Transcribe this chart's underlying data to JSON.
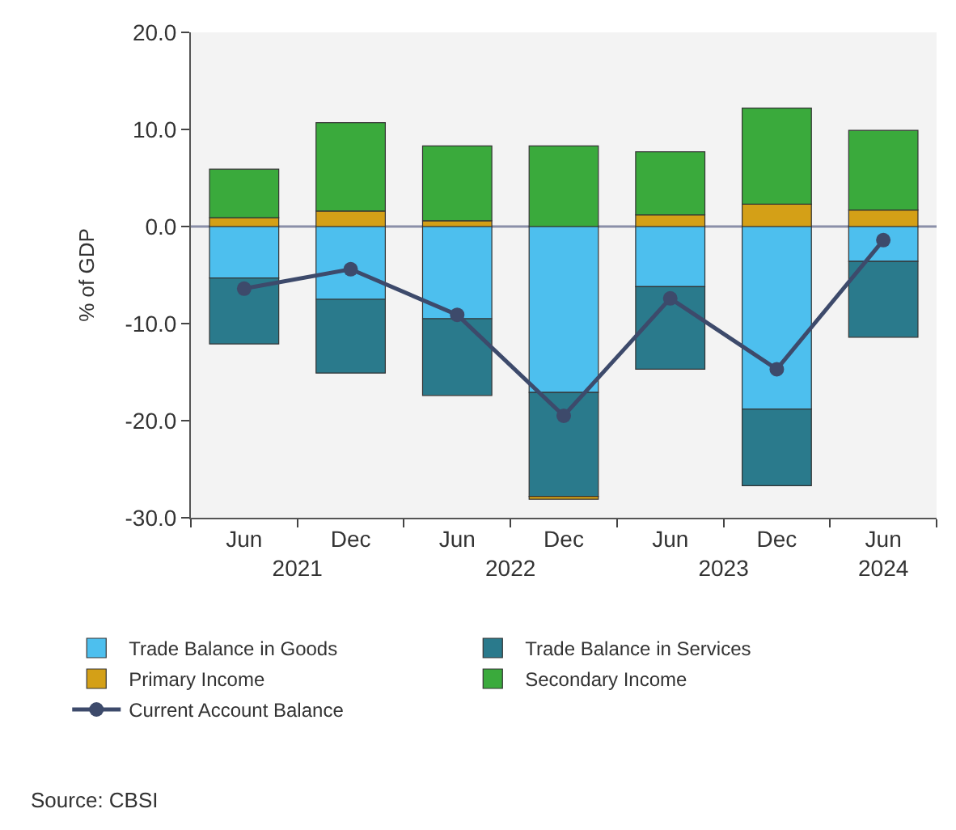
{
  "chart_data": {
    "type": "bar",
    "stacked": true,
    "ylabel": "% of GDP",
    "categories": [
      [
        "2021",
        "Jun"
      ],
      [
        null,
        "Dec"
      ],
      [
        "2022",
        "Jun"
      ],
      [
        null,
        "Dec"
      ],
      [
        "2023",
        "Jun"
      ],
      [
        null,
        "Dec"
      ],
      [
        "2024",
        "Jun"
      ]
    ],
    "series": [
      {
        "name": "Trade Balance in Goods",
        "color": "#4dbfee",
        "values": [
          -5.3,
          -7.5,
          -9.5,
          -17.1,
          -6.2,
          -18.8,
          -3.6
        ]
      },
      {
        "name": "Trade Balance in Services",
        "color": "#2a7a8c",
        "values": [
          -6.8,
          -7.6,
          -7.9,
          -10.7,
          -8.5,
          -7.9,
          -7.8
        ]
      },
      {
        "name": "Primary Income",
        "color": "#d4a017",
        "values": [
          0.9,
          1.6,
          0.6,
          -0.3,
          1.2,
          2.3,
          1.7
        ]
      },
      {
        "name": "Secondary Income",
        "color": "#3aaa3c",
        "values": [
          5.0,
          9.1,
          7.7,
          8.3,
          6.5,
          9.9,
          8.2
        ]
      },
      {
        "name": "Current Account Balance",
        "type": "line",
        "color": "#3d4a6b",
        "marker": "circle",
        "values": [
          -6.4,
          -4.4,
          -9.1,
          -19.5,
          -7.4,
          -14.7,
          -1.4
        ]
      }
    ],
    "ylim": [
      -30,
      20
    ],
    "yticks": [
      {
        "value": -30,
        "label": "-30.0"
      },
      {
        "value": -20,
        "label": "-20.0"
      },
      {
        "value": -10,
        "label": "-10.0"
      },
      {
        "value": 0,
        "label": "0.0"
      },
      {
        "value": 10,
        "label": "10.0"
      },
      {
        "value": 20,
        "label": "20.0"
      }
    ],
    "ref_lines": [
      {
        "axis": "y",
        "value": 0,
        "color": "#8a8fa8"
      }
    ],
    "grid": false,
    "legend": "bottom",
    "annotations": [
      "Source: CBSI"
    ]
  }
}
